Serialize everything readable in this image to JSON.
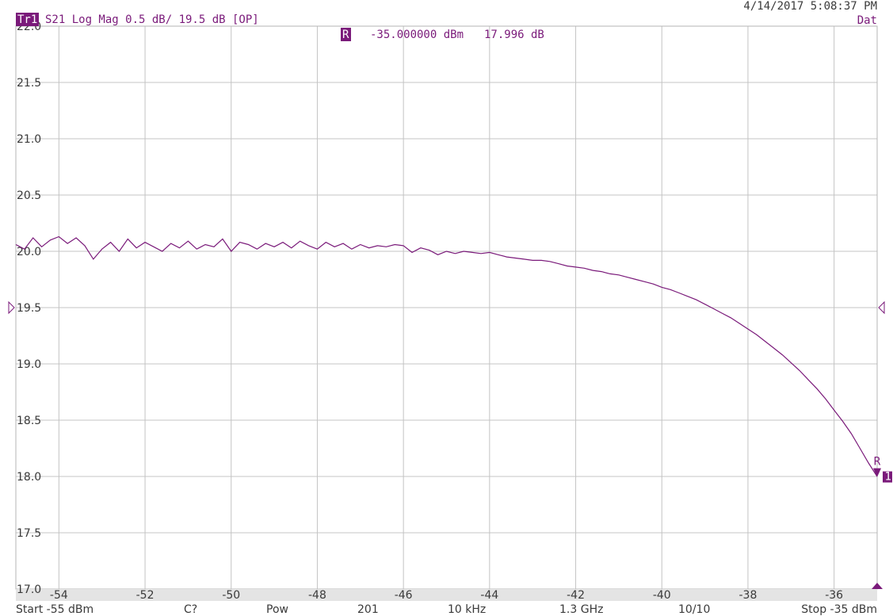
{
  "header": {
    "trace_badge": "Tr1",
    "trace_info": "S21 Log Mag 0.5 dB/ 19.5 dB [OP]",
    "timestamp": "4/14/2017 5:08:37 PM",
    "data_label": "Dat"
  },
  "marker": {
    "badge": "R",
    "stimulus": "-35.000000 dBm",
    "response": "17.996 dB",
    "end_badge": "1",
    "x": -35,
    "y": 17.996
  },
  "footer": {
    "start": "Start -55 dBm",
    "cal": "C?",
    "sweep_type": "Pow",
    "points": "201",
    "ifbw": "10 kHz",
    "cw_freq": "1.3 GHz",
    "avg": "10/10",
    "stop": "Stop -35 dBm"
  },
  "colors": {
    "trace": "#7a1a7a",
    "badge_bg": "#7a1a7a",
    "grid": "#c4c4c4",
    "text": "#3a3a3a"
  },
  "chart_data": {
    "type": "line",
    "xlim": [
      -55,
      -35
    ],
    "ylim": [
      17.0,
      22.0
    ],
    "y_ticks": [
      "22.0",
      "21.5",
      "21.0",
      "20.5",
      "20.0",
      "19.5",
      "19.0",
      "18.5",
      "18.0",
      "17.5",
      "17.0"
    ],
    "x_ticks": [
      "-54",
      "-52",
      "-50",
      "-48",
      "-46",
      "-44",
      "-42",
      "-40",
      "-38",
      "-36"
    ],
    "reference_value": 19.5,
    "grid": true,
    "x": [
      -55,
      -54.8,
      -54.6,
      -54.4,
      -54.2,
      -54,
      -53.8,
      -53.6,
      -53.4,
      -53.2,
      -53,
      -52.8,
      -52.6,
      -52.4,
      -52.2,
      -52,
      -51.8,
      -51.6,
      -51.4,
      -51.2,
      -51,
      -50.8,
      -50.6,
      -50.4,
      -50.2,
      -50,
      -49.8,
      -49.6,
      -49.4,
      -49.2,
      -49,
      -48.8,
      -48.6,
      -48.4,
      -48.2,
      -48,
      -47.8,
      -47.6,
      -47.4,
      -47.2,
      -47,
      -46.8,
      -46.6,
      -46.4,
      -46.2,
      -46,
      -45.8,
      -45.6,
      -45.4,
      -45.2,
      -45,
      -44.8,
      -44.6,
      -44.4,
      -44.2,
      -44,
      -43.8,
      -43.6,
      -43.4,
      -43.2,
      -43,
      -42.8,
      -42.6,
      -42.4,
      -42.2,
      -42,
      -41.8,
      -41.6,
      -41.4,
      -41.2,
      -41,
      -40.8,
      -40.6,
      -40.4,
      -40.2,
      -40,
      -39.8,
      -39.6,
      -39.4,
      -39.2,
      -39,
      -38.8,
      -38.6,
      -38.4,
      -38.2,
      -38,
      -37.8,
      -37.6,
      -37.4,
      -37.2,
      -37,
      -36.8,
      -36.6,
      -36.4,
      -36.2,
      -36,
      -35.8,
      -35.6,
      -35.4,
      -35.2,
      -35
    ],
    "y": [
      20.06,
      20.02,
      20.12,
      20.04,
      20.1,
      20.13,
      20.07,
      20.12,
      20.05,
      19.93,
      20.02,
      20.08,
      20.0,
      20.11,
      20.03,
      20.08,
      20.04,
      20.0,
      20.07,
      20.03,
      20.09,
      20.02,
      20.06,
      20.04,
      20.11,
      20.0,
      20.08,
      20.06,
      20.02,
      20.07,
      20.04,
      20.08,
      20.03,
      20.09,
      20.05,
      20.02,
      20.08,
      20.04,
      20.07,
      20.02,
      20.06,
      20.03,
      20.05,
      20.04,
      20.06,
      20.05,
      19.99,
      20.03,
      20.01,
      19.97,
      20.0,
      19.98,
      20.0,
      19.99,
      19.98,
      19.99,
      19.97,
      19.95,
      19.94,
      19.93,
      19.92,
      19.92,
      19.91,
      19.89,
      19.87,
      19.86,
      19.85,
      19.83,
      19.82,
      19.8,
      19.79,
      19.77,
      19.75,
      19.73,
      19.71,
      19.68,
      19.66,
      19.63,
      19.6,
      19.57,
      19.53,
      19.49,
      19.45,
      19.41,
      19.36,
      19.31,
      19.26,
      19.2,
      19.14,
      19.08,
      19.01,
      18.94,
      18.86,
      18.78,
      18.69,
      18.59,
      18.49,
      18.38,
      18.25,
      18.12,
      18.0
    ]
  }
}
